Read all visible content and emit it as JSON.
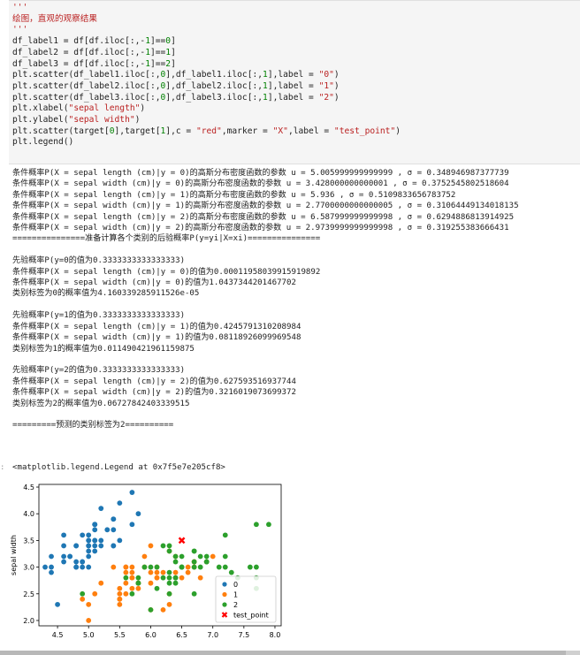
{
  "code_cell": {
    "lines": [
      "'''",
      "绘图，直观的观察结果",
      "'''",
      "df_label1 = df[df.iloc[:,-1]==0]",
      "df_label2 = df[df.iloc[:,-1]==1]",
      "df_label3 = df[df.iloc[:,-1]==2]",
      "plt.scatter(df_label1.iloc[:,0],df_label1.iloc[:,1],label = \"0\")",
      "plt.scatter(df_label2.iloc[:,0],df_label2.iloc[:,1],label = \"1\")",
      "plt.scatter(df_label3.iloc[:,0],df_label3.iloc[:,1],label = \"2\")",
      "plt.xlabel(\"sepal length\")",
      "plt.ylabel(\"sepal width\")",
      "plt.scatter(target[0],target[1],c = \"red\",marker = \"X\",label = \"test_point\")",
      "plt.legend()"
    ]
  },
  "output_lines": [
    "条件概率P(X = sepal length (cm)|y = 0)的高斯分布密度函数的参数 u = 5.005999999999999 , σ = 0.348946987377739",
    "条件概率P(X = sepal width (cm)|y = 0)的高斯分布密度函数的参数 u = 3.428000000000001 , σ = 0.3752545802518604",
    "条件概率P(X = sepal length (cm)|y = 1)的高斯分布密度函数的参数 u = 5.936 , σ = 0.5109833656783752",
    "条件概率P(X = sepal width (cm)|y = 1)的高斯分布密度函数的参数 u = 2.7700000000000005 , σ = 0.31064449134018135",
    "条件概率P(X = sepal length (cm)|y = 2)的高斯分布密度函数的参数 u = 6.587999999999998 , σ = 0.6294886813914925",
    "条件概率P(X = sepal width (cm)|y = 2)的高斯分布密度函数的参数 u = 2.9739999999999998 , σ = 0.319255383666431",
    "===============准备计算各个类别的后验概率P(y=yi|X=xi)===============",
    "",
    "先验概率P(y=0的值为0.3333333333333333)",
    "条件概率P(X = sepal length (cm)|y = 0)的值为0.00011958039915919892",
    "条件概率P(X = sepal width (cm)|y = 0)的值为1.0437344201467702",
    "类别标签为0的概率值为4.160339285911526e-05",
    "",
    "先验概率P(y=1的值为0.3333333333333333)",
    "条件概率P(X = sepal length (cm)|y = 1)的值为0.4245791310208984",
    "条件概率P(X = sepal width (cm)|y = 1)的值为0.08118926099969548",
    "类别标签为1的概率值为0.011490421961159875",
    "",
    "先验概率P(y=2的值为0.3333333333333333)",
    "条件概率P(X = sepal length (cm)|y = 2)的值为0.627593516937744",
    "条件概率P(X = sepal width (cm)|y = 2)的值为0.3216019073699372",
    "类别标签为2的概率值为0.06727842403339515",
    "",
    "=========预测的类别标签为2=========="
  ],
  "repr_output": "<matplotlib.legend.Legend at 0x7f5e7e205cf8>",
  "chart_data": {
    "type": "scatter",
    "xlabel": "",
    "ylabel": "sepal width",
    "xlim": [
      4.2,
      8.1
    ],
    "ylim": [
      1.9,
      4.55
    ],
    "xticks": [
      "4.5",
      "5.0",
      "5.5",
      "6.0",
      "6.5",
      "7.0",
      "7.5",
      "8.0"
    ],
    "yticks": [
      "2.0",
      "2.5",
      "3.0",
      "3.5",
      "4.0",
      "4.5"
    ],
    "legend_position": "lower-right",
    "grid": false,
    "series": [
      {
        "name": "0",
        "color": "#1f77b4",
        "marker": "circle",
        "points": [
          [
            5.1,
            3.5
          ],
          [
            4.9,
            3.0
          ],
          [
            4.7,
            3.2
          ],
          [
            4.6,
            3.1
          ],
          [
            5.0,
            3.6
          ],
          [
            5.4,
            3.9
          ],
          [
            4.6,
            3.4
          ],
          [
            5.0,
            3.4
          ],
          [
            4.4,
            2.9
          ],
          [
            4.9,
            3.1
          ],
          [
            5.4,
            3.7
          ],
          [
            4.8,
            3.4
          ],
          [
            4.8,
            3.0
          ],
          [
            4.3,
            3.0
          ],
          [
            5.8,
            4.0
          ],
          [
            5.7,
            4.4
          ],
          [
            5.4,
            3.9
          ],
          [
            5.1,
            3.5
          ],
          [
            5.7,
            3.8
          ],
          [
            5.1,
            3.8
          ],
          [
            5.4,
            3.4
          ],
          [
            5.1,
            3.7
          ],
          [
            4.6,
            3.6
          ],
          [
            5.1,
            3.3
          ],
          [
            4.8,
            3.4
          ],
          [
            5.0,
            3.0
          ],
          [
            5.0,
            3.4
          ],
          [
            5.2,
            3.5
          ],
          [
            5.2,
            3.4
          ],
          [
            4.7,
            3.2
          ],
          [
            4.8,
            3.1
          ],
          [
            5.4,
            3.4
          ],
          [
            5.2,
            4.1
          ],
          [
            5.5,
            4.2
          ],
          [
            4.9,
            3.1
          ],
          [
            5.0,
            3.2
          ],
          [
            5.5,
            3.5
          ],
          [
            4.9,
            3.6
          ],
          [
            4.4,
            3.0
          ],
          [
            5.1,
            3.4
          ],
          [
            5.0,
            3.5
          ],
          [
            4.5,
            2.3
          ],
          [
            4.4,
            3.2
          ],
          [
            5.0,
            3.5
          ],
          [
            5.1,
            3.8
          ],
          [
            4.8,
            3.0
          ],
          [
            5.1,
            3.8
          ],
          [
            4.6,
            3.2
          ],
          [
            5.3,
            3.7
          ],
          [
            5.0,
            3.3
          ]
        ]
      },
      {
        "name": "1",
        "color": "#ff7f0e",
        "marker": "circle",
        "points": [
          [
            7.0,
            3.2
          ],
          [
            6.4,
            3.2
          ],
          [
            6.9,
            3.1
          ],
          [
            5.5,
            2.3
          ],
          [
            6.5,
            2.8
          ],
          [
            5.7,
            2.8
          ],
          [
            6.3,
            3.3
          ],
          [
            4.9,
            2.4
          ],
          [
            6.6,
            2.9
          ],
          [
            5.2,
            2.7
          ],
          [
            5.0,
            2.0
          ],
          [
            5.9,
            3.0
          ],
          [
            6.0,
            2.2
          ],
          [
            6.1,
            2.9
          ],
          [
            5.6,
            2.9
          ],
          [
            6.7,
            3.1
          ],
          [
            5.6,
            3.0
          ],
          [
            5.8,
            2.7
          ],
          [
            6.2,
            2.2
          ],
          [
            5.6,
            2.5
          ],
          [
            5.9,
            3.2
          ],
          [
            6.1,
            2.8
          ],
          [
            6.3,
            2.5
          ],
          [
            6.1,
            2.8
          ],
          [
            6.4,
            2.9
          ],
          [
            6.6,
            3.0
          ],
          [
            6.8,
            2.8
          ],
          [
            6.7,
            3.0
          ],
          [
            6.0,
            2.9
          ],
          [
            5.7,
            2.6
          ],
          [
            5.5,
            2.4
          ],
          [
            5.5,
            2.4
          ],
          [
            5.8,
            2.7
          ],
          [
            6.0,
            2.7
          ],
          [
            5.4,
            3.0
          ],
          [
            6.0,
            3.4
          ],
          [
            6.7,
            3.1
          ],
          [
            6.3,
            2.3
          ],
          [
            5.6,
            3.0
          ],
          [
            5.5,
            2.5
          ],
          [
            5.5,
            2.6
          ],
          [
            6.1,
            3.0
          ],
          [
            5.8,
            2.6
          ],
          [
            5.0,
            2.3
          ],
          [
            5.6,
            2.7
          ],
          [
            5.7,
            3.0
          ],
          [
            5.7,
            2.9
          ],
          [
            6.2,
            2.9
          ],
          [
            5.1,
            2.5
          ],
          [
            5.7,
            2.8
          ]
        ]
      },
      {
        "name": "2",
        "color": "#2ca02c",
        "marker": "circle",
        "points": [
          [
            6.3,
            3.3
          ],
          [
            5.8,
            2.7
          ],
          [
            7.1,
            3.0
          ],
          [
            6.3,
            2.9
          ],
          [
            6.5,
            3.0
          ],
          [
            7.6,
            3.0
          ],
          [
            4.9,
            2.5
          ],
          [
            7.3,
            2.9
          ],
          [
            6.7,
            2.5
          ],
          [
            7.2,
            3.6
          ],
          [
            6.5,
            3.2
          ],
          [
            6.4,
            2.7
          ],
          [
            6.8,
            3.0
          ],
          [
            5.7,
            2.5
          ],
          [
            5.8,
            2.8
          ],
          [
            6.4,
            3.2
          ],
          [
            6.5,
            3.0
          ],
          [
            7.7,
            3.8
          ],
          [
            7.7,
            2.6
          ],
          [
            6.0,
            2.2
          ],
          [
            6.9,
            3.2
          ],
          [
            5.6,
            2.8
          ],
          [
            7.7,
            2.8
          ],
          [
            6.3,
            2.7
          ],
          [
            6.7,
            3.3
          ],
          [
            7.2,
            3.2
          ],
          [
            6.2,
            2.8
          ],
          [
            6.1,
            3.0
          ],
          [
            6.4,
            2.8
          ],
          [
            7.2,
            3.0
          ],
          [
            7.4,
            2.8
          ],
          [
            7.9,
            3.8
          ],
          [
            6.4,
            2.8
          ],
          [
            6.3,
            2.8
          ],
          [
            6.1,
            2.6
          ],
          [
            7.7,
            3.0
          ],
          [
            6.3,
            3.4
          ],
          [
            6.4,
            3.1
          ],
          [
            6.0,
            3.0
          ],
          [
            6.9,
            3.1
          ],
          [
            6.7,
            3.1
          ],
          [
            6.9,
            3.1
          ],
          [
            5.8,
            2.7
          ],
          [
            6.8,
            3.2
          ],
          [
            6.7,
            3.3
          ],
          [
            6.7,
            3.0
          ],
          [
            6.3,
            2.5
          ],
          [
            6.5,
            3.0
          ],
          [
            6.2,
            3.4
          ],
          [
            5.9,
            3.0
          ]
        ]
      },
      {
        "name": "test_point",
        "color": "#ff0000",
        "marker": "X",
        "points": [
          [
            6.5,
            3.5
          ]
        ]
      }
    ]
  },
  "colors": {
    "cell_bg": "#f5f5f5",
    "string": "#ba2121",
    "comment": "#408080",
    "builtin": "#008000"
  }
}
